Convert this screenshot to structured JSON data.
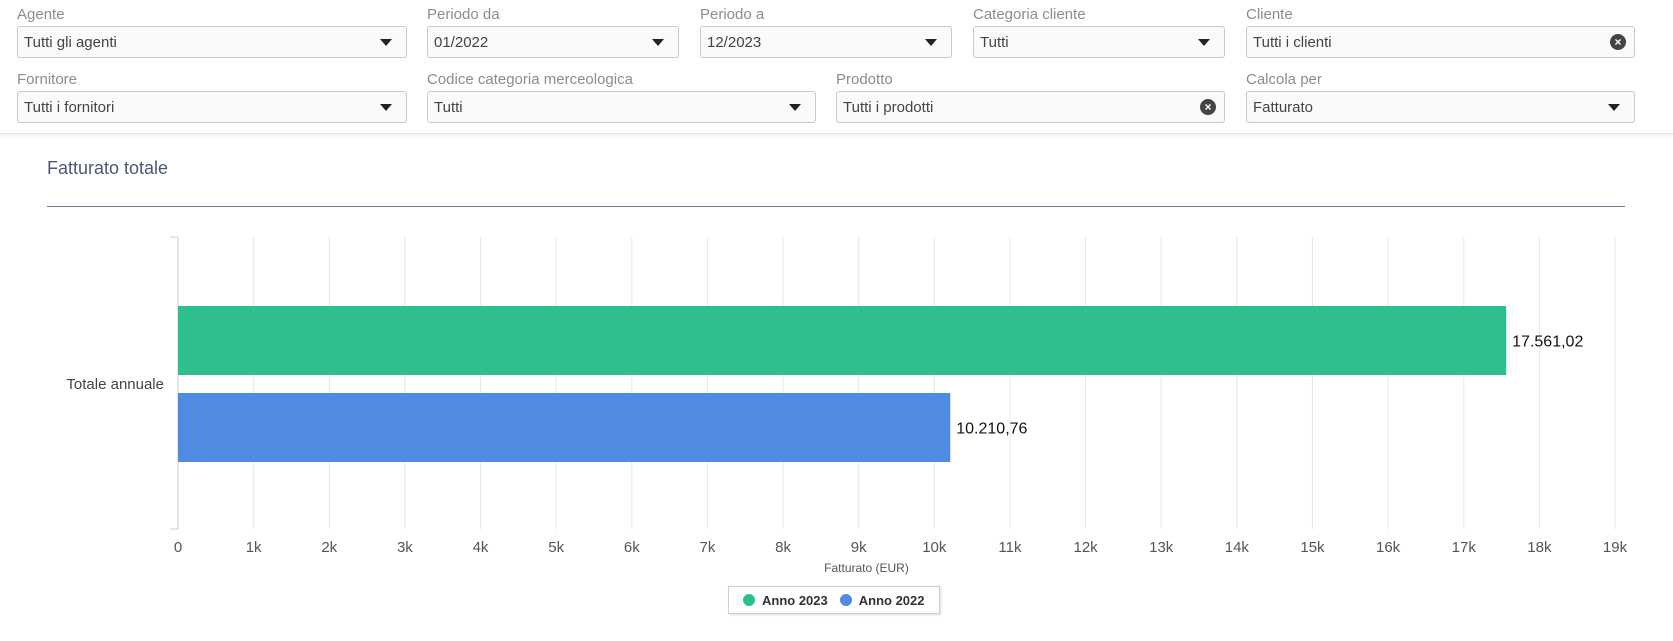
{
  "filters": {
    "agente": {
      "label": "Agente",
      "value": "Tutti gli agenti"
    },
    "periodo_da": {
      "label": "Periodo da",
      "value": "01/2022"
    },
    "periodo_a": {
      "label": "Periodo a",
      "value": "12/2023"
    },
    "categoria_cliente": {
      "label": "Categoria cliente",
      "value": "Tutti"
    },
    "cliente": {
      "label": "Cliente",
      "value": "Tutti i clienti"
    },
    "fornitore": {
      "label": "Fornitore",
      "value": "Tutti i fornitori"
    },
    "codice_categoria": {
      "label": "Codice categoria merceologica",
      "value": "Tutti"
    },
    "prodotto": {
      "label": "Prodotto",
      "value": "Tutti i prodotti"
    },
    "calcola_per": {
      "label": "Calcola per",
      "value": "Fatturato"
    }
  },
  "section": {
    "title": "Fatturato totale"
  },
  "legend": {
    "items": [
      "Anno 2023",
      "Anno 2022"
    ]
  },
  "chart_data": {
    "type": "bar",
    "orientation": "horizontal",
    "categories": [
      "Totale annuale"
    ],
    "series": [
      {
        "name": "Anno 2023",
        "values": [
          17561.02
        ],
        "color": "#2ebf91",
        "label": "17.561,02"
      },
      {
        "name": "Anno 2022",
        "values": [
          10210.76
        ],
        "color": "#508be3",
        "label": "10.210,76"
      }
    ],
    "xlabel": "Fatturato (EUR)",
    "xlim": [
      0,
      19000
    ],
    "xticks": [
      0,
      1000,
      2000,
      3000,
      4000,
      5000,
      6000,
      7000,
      8000,
      9000,
      10000,
      11000,
      12000,
      13000,
      14000,
      15000,
      16000,
      17000,
      18000,
      19000
    ],
    "xtick_labels": [
      "0",
      "1k",
      "2k",
      "3k",
      "4k",
      "5k",
      "6k",
      "7k",
      "8k",
      "9k",
      "10k",
      "11k",
      "12k",
      "13k",
      "14k",
      "15k",
      "16k",
      "17k",
      "18k",
      "19k"
    ],
    "grid": true,
    "legend_position": "bottom-center"
  }
}
